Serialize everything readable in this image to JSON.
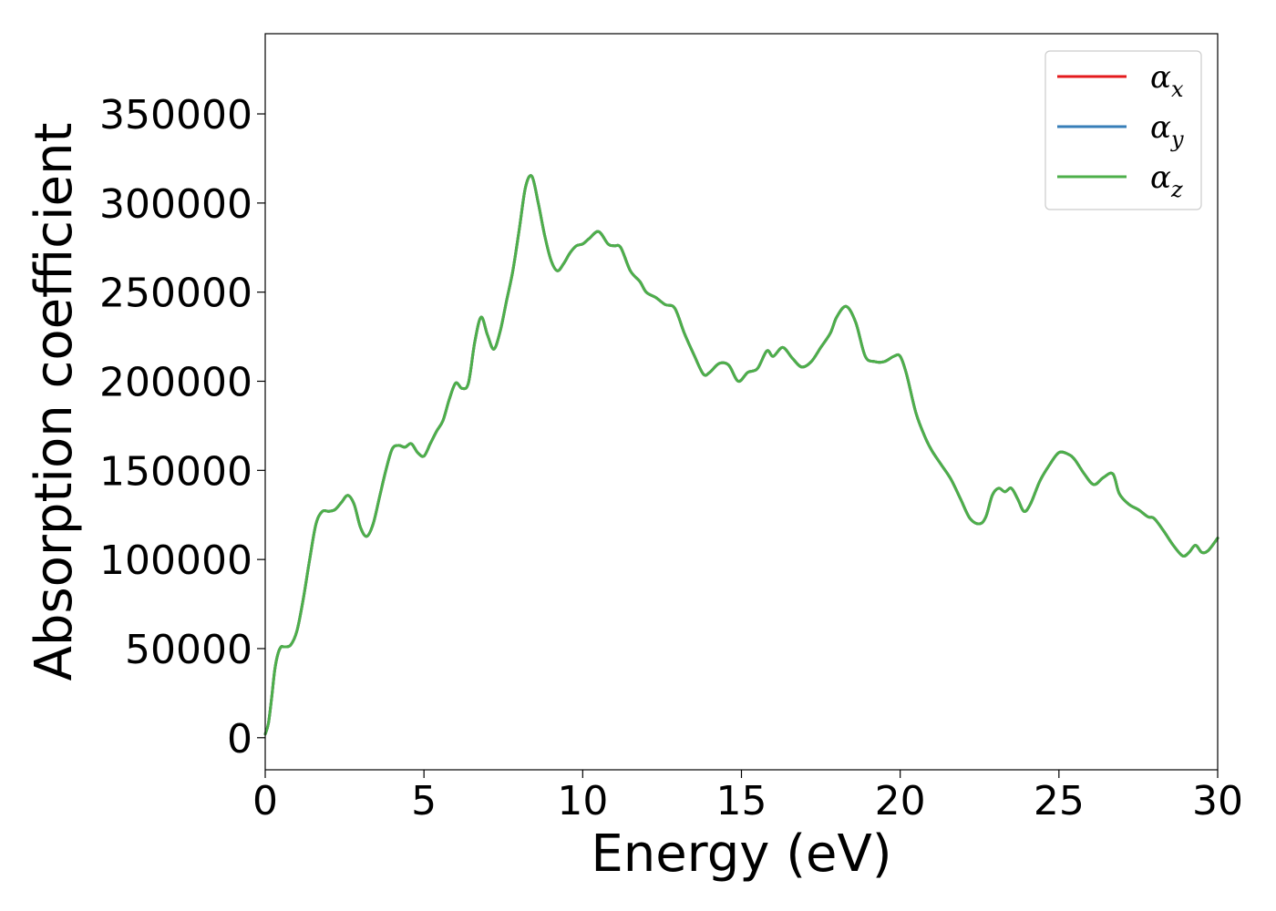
{
  "chart_data": {
    "type": "line",
    "title": "",
    "xlabel": "Energy (eV)",
    "ylabel": "Absorption coefficient",
    "xlim": [
      0,
      30
    ],
    "ylim": [
      -18000,
      395000
    ],
    "xticks": [
      0,
      5,
      10,
      15,
      20,
      25,
      30
    ],
    "yticks": [
      0,
      50000,
      100000,
      150000,
      200000,
      250000,
      300000,
      350000
    ],
    "grid": false,
    "legend_position": "top-right",
    "series": [
      {
        "name": "α",
        "name_subscript": "x",
        "color": "#e41a1c",
        "x": [
          0,
          0.1,
          0.2,
          0.3,
          0.4,
          0.5,
          0.6,
          0.8,
          1.0,
          1.2,
          1.4,
          1.6,
          1.8,
          2.0,
          2.2,
          2.4,
          2.6,
          2.8,
          3.0,
          3.2,
          3.4,
          3.6,
          3.8,
          4.0,
          4.2,
          4.4,
          4.6,
          4.8,
          5.0,
          5.2,
          5.4,
          5.6,
          5.8,
          6.0,
          6.2,
          6.4,
          6.6,
          6.8,
          7.0,
          7.2,
          7.4,
          7.6,
          7.8,
          8.0,
          8.2,
          8.4,
          8.6,
          8.8,
          9.0,
          9.2,
          9.4,
          9.6,
          9.8,
          10.0,
          10.2,
          10.5,
          10.8,
          11.0,
          11.2,
          11.5,
          11.8,
          12.0,
          12.3,
          12.6,
          12.9,
          13.2,
          13.5,
          13.8,
          14.0,
          14.3,
          14.6,
          14.9,
          15.2,
          15.5,
          15.8,
          16.0,
          16.3,
          16.6,
          16.9,
          17.2,
          17.5,
          17.8,
          18.0,
          18.3,
          18.6,
          18.9,
          19.2,
          19.5,
          19.8,
          20.0,
          20.2,
          20.5,
          20.8,
          21.0,
          21.3,
          21.6,
          21.9,
          22.2,
          22.5,
          22.7,
          22.9,
          23.1,
          23.3,
          23.5,
          23.7,
          23.9,
          24.1,
          24.4,
          24.7,
          25.0,
          25.3,
          25.5,
          25.8,
          26.1,
          26.4,
          26.7,
          26.9,
          27.2,
          27.5,
          27.8,
          28.0,
          28.3,
          28.6,
          28.9,
          29.1,
          29.3,
          29.5,
          29.7,
          30.0
        ],
        "y": [
          2000,
          8000,
          22000,
          38000,
          47000,
          51000,
          51000,
          52000,
          60000,
          78000,
          100000,
          120000,
          127000,
          127000,
          128000,
          132000,
          136000,
          131000,
          118000,
          113000,
          120000,
          135000,
          150000,
          162000,
          164000,
          163000,
          165000,
          160000,
          158000,
          165000,
          172000,
          178000,
          190000,
          199000,
          196000,
          199000,
          222000,
          236000,
          226000,
          218000,
          228000,
          245000,
          262000,
          285000,
          309000,
          315000,
          300000,
          282000,
          268000,
          262000,
          266000,
          272000,
          276000,
          277000,
          280000,
          284000,
          277000,
          276000,
          275000,
          262000,
          256000,
          250000,
          247000,
          243000,
          241000,
          227000,
          215000,
          204000,
          205000,
          210000,
          209000,
          200000,
          205000,
          207000,
          217000,
          214000,
          219000,
          213000,
          208000,
          211000,
          219000,
          227000,
          236000,
          242000,
          233000,
          214000,
          211000,
          211000,
          214000,
          214000,
          204000,
          182000,
          168000,
          161000,
          153000,
          145000,
          134000,
          123000,
          120000,
          124000,
          136000,
          140000,
          138000,
          140000,
          134000,
          127000,
          131000,
          144000,
          153000,
          160000,
          159000,
          156000,
          148000,
          142000,
          146000,
          148000,
          137000,
          131000,
          128000,
          124000,
          123000,
          116000,
          108000,
          102000,
          104000,
          108000,
          104000,
          105000,
          112000
        ]
      },
      {
        "name": "α",
        "name_subscript": "y",
        "color": "#377eb8",
        "x": [
          0,
          0.1,
          0.2,
          0.3,
          0.4,
          0.5,
          0.6,
          0.8,
          1.0,
          1.2,
          1.4,
          1.6,
          1.8,
          2.0,
          2.2,
          2.4,
          2.6,
          2.8,
          3.0,
          3.2,
          3.4,
          3.6,
          3.8,
          4.0,
          4.2,
          4.4,
          4.6,
          4.8,
          5.0,
          5.2,
          5.4,
          5.6,
          5.8,
          6.0,
          6.2,
          6.4,
          6.6,
          6.8,
          7.0,
          7.2,
          7.4,
          7.6,
          7.8,
          8.0,
          8.2,
          8.4,
          8.6,
          8.8,
          9.0,
          9.2,
          9.4,
          9.6,
          9.8,
          10.0,
          10.2,
          10.5,
          10.8,
          11.0,
          11.2,
          11.5,
          11.8,
          12.0,
          12.3,
          12.6,
          12.9,
          13.2,
          13.5,
          13.8,
          14.0,
          14.3,
          14.6,
          14.9,
          15.2,
          15.5,
          15.8,
          16.0,
          16.3,
          16.6,
          16.9,
          17.2,
          17.5,
          17.8,
          18.0,
          18.3,
          18.6,
          18.9,
          19.2,
          19.5,
          19.8,
          20.0,
          20.2,
          20.5,
          20.8,
          21.0,
          21.3,
          21.6,
          21.9,
          22.2,
          22.5,
          22.7,
          22.9,
          23.1,
          23.3,
          23.5,
          23.7,
          23.9,
          24.1,
          24.4,
          24.7,
          25.0,
          25.3,
          25.5,
          25.8,
          26.1,
          26.4,
          26.7,
          26.9,
          27.2,
          27.5,
          27.8,
          28.0,
          28.3,
          28.6,
          28.9,
          29.1,
          29.3,
          29.5,
          29.7,
          30.0
        ],
        "y": [
          2000,
          8000,
          22000,
          38000,
          47000,
          51000,
          51000,
          52000,
          60000,
          78000,
          100000,
          120000,
          127000,
          127000,
          128000,
          132000,
          136000,
          131000,
          118000,
          113000,
          120000,
          135000,
          150000,
          162000,
          164000,
          163000,
          165000,
          160000,
          158000,
          165000,
          172000,
          178000,
          190000,
          199000,
          196000,
          199000,
          222000,
          236000,
          226000,
          218000,
          228000,
          245000,
          262000,
          285000,
          309000,
          315000,
          300000,
          282000,
          268000,
          262000,
          266000,
          272000,
          276000,
          277000,
          280000,
          284000,
          277000,
          276000,
          275000,
          262000,
          256000,
          250000,
          247000,
          243000,
          241000,
          227000,
          215000,
          204000,
          205000,
          210000,
          209000,
          200000,
          205000,
          207000,
          217000,
          214000,
          219000,
          213000,
          208000,
          211000,
          219000,
          227000,
          236000,
          242000,
          233000,
          214000,
          211000,
          211000,
          214000,
          214000,
          204000,
          182000,
          168000,
          161000,
          153000,
          145000,
          134000,
          123000,
          120000,
          124000,
          136000,
          140000,
          138000,
          140000,
          134000,
          127000,
          131000,
          144000,
          153000,
          160000,
          159000,
          156000,
          148000,
          142000,
          146000,
          148000,
          137000,
          131000,
          128000,
          124000,
          123000,
          116000,
          108000,
          102000,
          104000,
          108000,
          104000,
          105000,
          112000
        ]
      },
      {
        "name": "α",
        "name_subscript": "z",
        "color": "#4daf4a",
        "x": [
          0,
          0.1,
          0.2,
          0.3,
          0.4,
          0.5,
          0.6,
          0.8,
          1.0,
          1.2,
          1.4,
          1.6,
          1.8,
          2.0,
          2.2,
          2.4,
          2.6,
          2.8,
          3.0,
          3.2,
          3.4,
          3.6,
          3.8,
          4.0,
          4.2,
          4.4,
          4.6,
          4.8,
          5.0,
          5.2,
          5.4,
          5.6,
          5.8,
          6.0,
          6.2,
          6.4,
          6.6,
          6.8,
          7.0,
          7.2,
          7.4,
          7.6,
          7.8,
          8.0,
          8.2,
          8.4,
          8.6,
          8.8,
          9.0,
          9.2,
          9.4,
          9.6,
          9.8,
          10.0,
          10.2,
          10.5,
          10.8,
          11.0,
          11.2,
          11.5,
          11.8,
          12.0,
          12.3,
          12.6,
          12.9,
          13.2,
          13.5,
          13.8,
          14.0,
          14.3,
          14.6,
          14.9,
          15.2,
          15.5,
          15.8,
          16.0,
          16.3,
          16.6,
          16.9,
          17.2,
          17.5,
          17.8,
          18.0,
          18.3,
          18.6,
          18.9,
          19.2,
          19.5,
          19.8,
          20.0,
          20.2,
          20.5,
          20.8,
          21.0,
          21.3,
          21.6,
          21.9,
          22.2,
          22.5,
          22.7,
          22.9,
          23.1,
          23.3,
          23.5,
          23.7,
          23.9,
          24.1,
          24.4,
          24.7,
          25.0,
          25.3,
          25.5,
          25.8,
          26.1,
          26.4,
          26.7,
          26.9,
          27.2,
          27.5,
          27.8,
          28.0,
          28.3,
          28.6,
          28.9,
          29.1,
          29.3,
          29.5,
          29.7,
          30.0
        ],
        "y": [
          2000,
          8000,
          22000,
          38000,
          47000,
          51000,
          51000,
          52000,
          60000,
          78000,
          100000,
          120000,
          127000,
          127000,
          128000,
          132000,
          136000,
          131000,
          118000,
          113000,
          120000,
          135000,
          150000,
          162000,
          164000,
          163000,
          165000,
          160000,
          158000,
          165000,
          172000,
          178000,
          190000,
          199000,
          196000,
          199000,
          222000,
          236000,
          226000,
          218000,
          228000,
          245000,
          262000,
          285000,
          309000,
          315000,
          300000,
          282000,
          268000,
          262000,
          266000,
          272000,
          276000,
          277000,
          280000,
          284000,
          277000,
          276000,
          275000,
          262000,
          256000,
          250000,
          247000,
          243000,
          241000,
          227000,
          215000,
          204000,
          205000,
          210000,
          209000,
          200000,
          205000,
          207000,
          217000,
          214000,
          219000,
          213000,
          208000,
          211000,
          219000,
          227000,
          236000,
          242000,
          233000,
          214000,
          211000,
          211000,
          214000,
          214000,
          204000,
          182000,
          168000,
          161000,
          153000,
          145000,
          134000,
          123000,
          120000,
          124000,
          136000,
          140000,
          138000,
          140000,
          134000,
          127000,
          131000,
          144000,
          153000,
          160000,
          159000,
          156000,
          148000,
          142000,
          146000,
          148000,
          137000,
          131000,
          128000,
          124000,
          123000,
          116000,
          108000,
          102000,
          104000,
          108000,
          104000,
          105000,
          112000
        ]
      }
    ]
  }
}
